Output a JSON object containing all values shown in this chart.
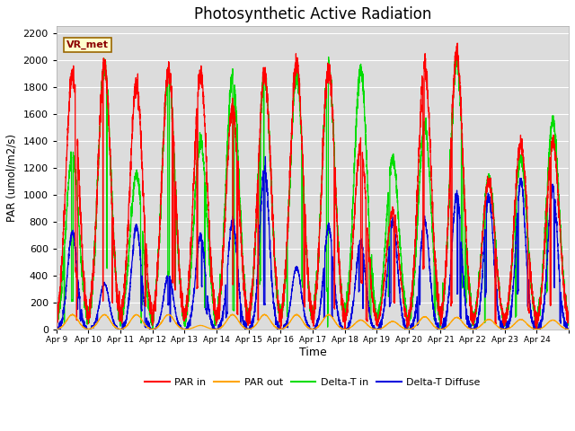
{
  "title": "Photosynthetic Active Radiation",
  "xlabel": "Time",
  "ylabel": "PAR (umol/m2/s)",
  "ylim": [
    0,
    2250
  ],
  "yticks": [
    0,
    200,
    400,
    600,
    800,
    1000,
    1200,
    1400,
    1600,
    1800,
    2000,
    2200
  ],
  "legend_label": "VR_met",
  "line_colors": {
    "PAR in": "#ff0000",
    "PAR out": "#ffa500",
    "Delta-T in": "#00dd00",
    "Delta-T Diffuse": "#0000dd"
  },
  "axes_bg": "#dcdcdc",
  "title_fontsize": 12,
  "xtick_labels": [
    "Apr 9",
    "Apr 10",
    "Apr 11",
    "Apr 12",
    "Apr 13",
    "Apr 14",
    "Apr 15",
    "Apr 16",
    "Apr 17",
    "Apr 18",
    "Apr 19",
    "Apr 20",
    "Apr 21",
    "Apr 22",
    "Apr 23",
    "Apr 24"
  ],
  "days": 16,
  "ppd": 288,
  "day_peaks_PAR_in": [
    1900,
    1950,
    1820,
    1930,
    1900,
    1650,
    1900,
    1980,
    1940,
    1350,
    870,
    1950,
    2050,
    1100,
    1380,
    1400
  ],
  "day_peaks_PAR_out": [
    110,
    110,
    110,
    110,
    30,
    110,
    110,
    110,
    110,
    70,
    60,
    95,
    90,
    75,
    75,
    70
  ],
  "day_peaks_DT_in": [
    1300,
    1950,
    1150,
    1900,
    1400,
    1880,
    1880,
    1880,
    1950,
    1940,
    1270,
    1510,
    2000,
    1130,
    1270,
    1540
  ],
  "day_peaks_DT_dif": [
    720,
    340,
    760,
    400,
    690,
    800,
    1200,
    460,
    760,
    650,
    800,
    800,
    1010,
    990,
    1100,
    1050
  ]
}
